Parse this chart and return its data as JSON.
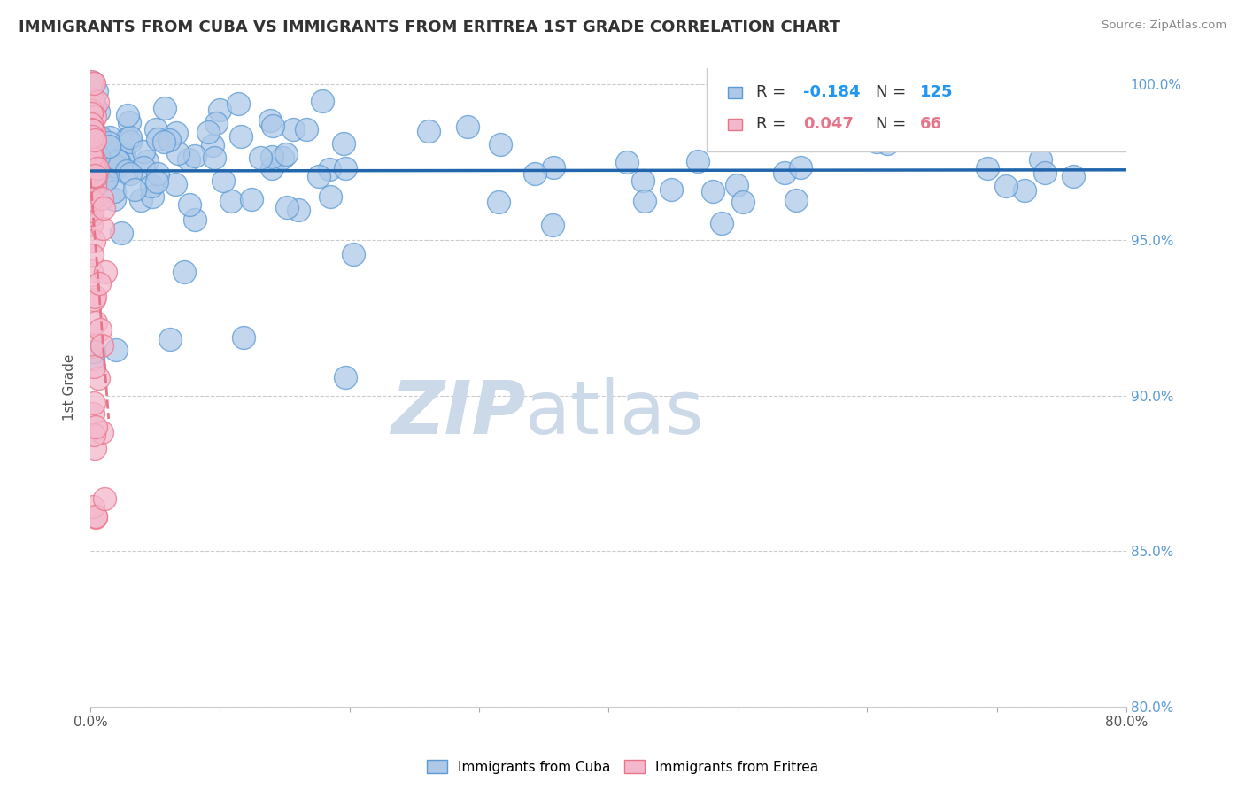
{
  "title": "IMMIGRANTS FROM CUBA VS IMMIGRANTS FROM ERITREA 1ST GRADE CORRELATION CHART",
  "source": "Source: ZipAtlas.com",
  "ylabel": "1st Grade",
  "xlim": [
    0.0,
    0.8
  ],
  "ylim": [
    0.8,
    1.005
  ],
  "x_tick_positions": [
    0.0,
    0.1,
    0.2,
    0.3,
    0.4,
    0.5,
    0.6,
    0.7,
    0.8
  ],
  "x_tick_labels": [
    "0.0%",
    "",
    "",
    "",
    "",
    "",
    "",
    "",
    "80.0%"
  ],
  "y_tick_positions": [
    0.8,
    0.85,
    0.9,
    0.95,
    1.0
  ],
  "y_tick_labels": [
    "80.0%",
    "85.0%",
    "90.0%",
    "95.0%",
    "100.0%"
  ],
  "legend_blue_r": -0.184,
  "legend_blue_n": 125,
  "legend_pink_r": 0.047,
  "legend_pink_n": 66,
  "blue_color": "#aec9e8",
  "pink_color": "#f4b8cc",
  "blue_edge": "#5b9bd5",
  "pink_edge": "#e8748a",
  "blue_line_color": "#2166ac",
  "pink_line_color": "#e8748a",
  "background_color": "#ffffff",
  "grid_color": "#cccccc",
  "title_color": "#333333",
  "watermark_color": "#ccd9e8",
  "right_axis_color": "#5b9bd5"
}
